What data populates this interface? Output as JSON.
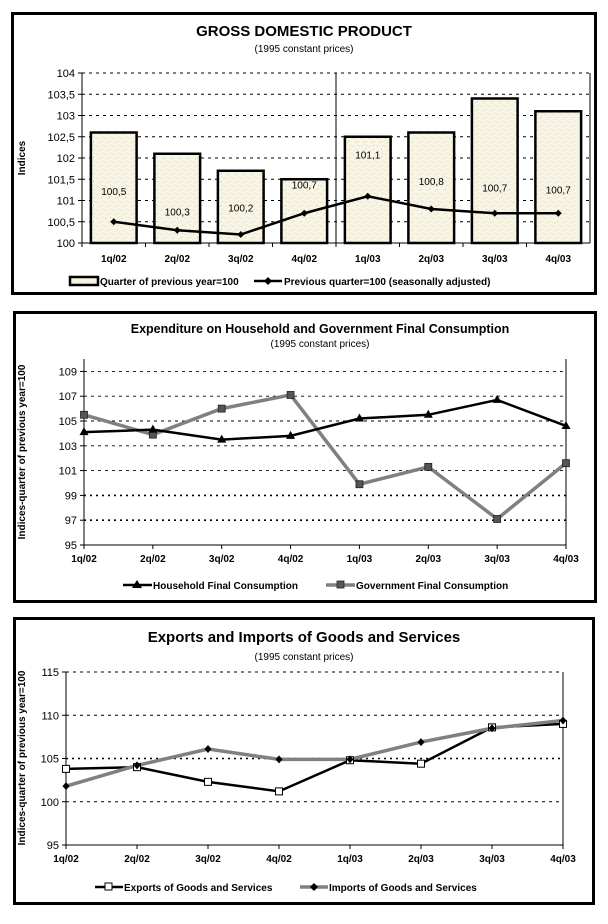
{
  "chart_data": [
    {
      "type": "bar",
      "title": "GROSS DOMESTIC PRODUCT",
      "subtitle": "(1995 constant prices)",
      "xlabel": "",
      "ylabel": "Indices",
      "ylim": [
        100,
        104
      ],
      "yticks": [
        "100",
        "100,5",
        "101",
        "101,5",
        "102",
        "102,5",
        "103",
        "103,5",
        "104"
      ],
      "ytick_values": [
        100,
        100.5,
        101,
        101.5,
        102,
        102.5,
        103,
        103.5,
        104
      ],
      "grid": true,
      "legend_position": "bottom",
      "categories": [
        "1q/02",
        "2q/02",
        "3q/02",
        "4q/02",
        "1q/03",
        "2q/03",
        "3q/03",
        "4q/03"
      ],
      "series": [
        {
          "name": "Quarter of previous year=100",
          "type": "bar",
          "values": [
            102.6,
            102.1,
            101.7,
            101.5,
            102.5,
            102.6,
            103.4,
            103.1
          ],
          "color": "#f7f3e3"
        },
        {
          "name": "Previous quarter=100 (seasonally adjusted)",
          "type": "line",
          "values": [
            100.5,
            100.3,
            100.2,
            100.7,
            101.1,
            100.8,
            100.7,
            100.7
          ],
          "labels": [
            "100,5",
            "100,3",
            "100,2",
            "100,7",
            "101,1",
            "100,8",
            "100,7",
            "100,7"
          ],
          "color": "#000000"
        }
      ]
    },
    {
      "type": "line",
      "title": "Expenditure on Household and Government Final Consumption",
      "subtitle": "(1995 constant prices)",
      "xlabel": "",
      "ylabel": "Indices-quarter of previous year=100",
      "ylim": [
        95,
        110
      ],
      "yticks": [
        "95",
        "97",
        "99",
        "101",
        "103",
        "105",
        "107",
        "109"
      ],
      "ytick_values": [
        95,
        97,
        99,
        101,
        103,
        105,
        107,
        109
      ],
      "grid": true,
      "legend_position": "bottom",
      "categories": [
        "1q/02",
        "2q/02",
        "3q/02",
        "4q/02",
        "1q/03",
        "2q/03",
        "3q/03",
        "4q/03"
      ],
      "series": [
        {
          "name": "Household Final Consumption",
          "values": [
            104.1,
            104.3,
            103.5,
            103.8,
            105.2,
            105.5,
            106.7,
            104.6
          ],
          "color": "#000000",
          "marker": "triangle"
        },
        {
          "name": "Government Final Consumption",
          "values": [
            105.5,
            103.9,
            106.0,
            107.1,
            99.9,
            101.3,
            97.1,
            101.6
          ],
          "color": "#808080",
          "marker": "square"
        }
      ]
    },
    {
      "type": "line",
      "title": "Exports and Imports of Goods and Services",
      "subtitle": "(1995 constant prices)",
      "xlabel": "",
      "ylabel": "Indices-quarter of previous year=100",
      "ylim": [
        95,
        115
      ],
      "yticks": [
        "95",
        "100",
        "105",
        "110",
        "115"
      ],
      "ytick_values": [
        95,
        100,
        105,
        110,
        115
      ],
      "grid": true,
      "legend_position": "bottom",
      "categories": [
        "1q/02",
        "2q/02",
        "3q/02",
        "4q/02",
        "1q/03",
        "2q/03",
        "3q/03",
        "4q/03"
      ],
      "series": [
        {
          "name": "Exports of Goods and Services",
          "values": [
            103.8,
            104.0,
            102.3,
            101.2,
            104.8,
            104.4,
            108.6,
            109.0
          ],
          "color": "#000000",
          "marker": "hollow-square"
        },
        {
          "name": "Imports of Goods and Services",
          "values": [
            101.8,
            104.2,
            106.1,
            104.9,
            104.9,
            106.9,
            108.5,
            109.4
          ],
          "color": "#808080",
          "marker": "diamond"
        }
      ]
    }
  ]
}
